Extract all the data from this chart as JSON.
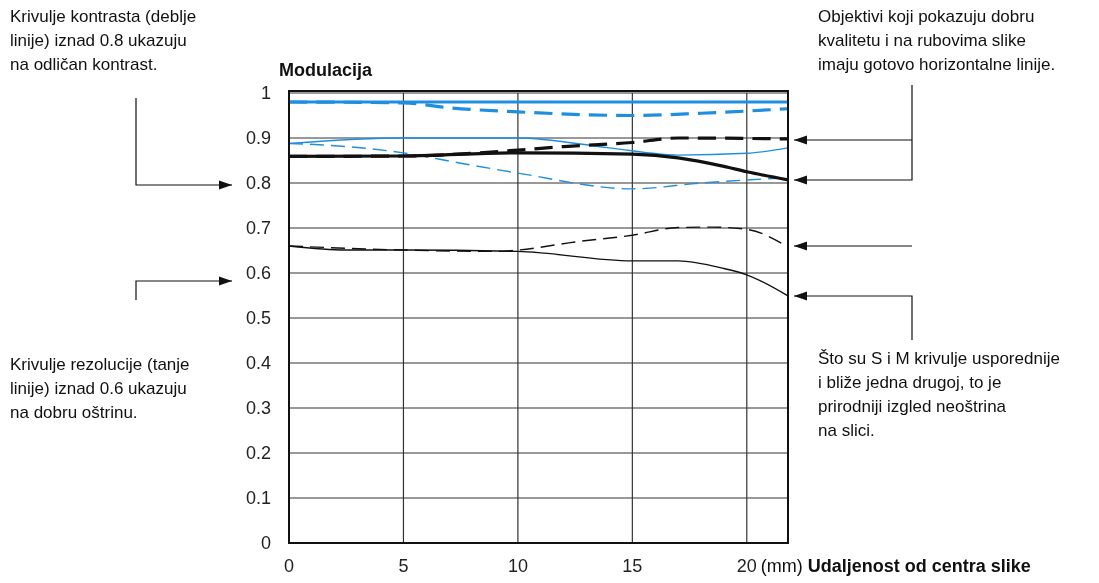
{
  "chart_data": {
    "type": "line",
    "ylabel": "Modulacija",
    "xlabel": "(mm) Udaljenost od centra slike",
    "xlim": [
      0,
      21.8
    ],
    "ylim": [
      0,
      1
    ],
    "xticks": [
      0,
      5,
      10,
      15,
      20
    ],
    "yticks": [
      0,
      0.1,
      0.2,
      0.3,
      0.4,
      0.5,
      0.6,
      0.7,
      0.8,
      0.9,
      1
    ],
    "grid": true,
    "annotations": [
      "Krivulje kontrasta (deblje\nlinije) iznad 0.8 ukazuju\nna odličan kontrast.",
      "Krivulje rezolucije (tanje\nlinije) iznad 0.6 ukazuju\nna dobru oštrinu.",
      "Objektivi koji pokazuju dobru\nkvalitetu i na rubovima slike\nimaju gotovo horizontalne linije.",
      "Što su S i M krivulje usporednije\ni bliže jedna drugoj, to je\nprirodniji izgled neoštrina\nna slici."
    ],
    "series": [
      {
        "color": "#1e8fe0",
        "line_style": "solid",
        "x": [
          0,
          5,
          10,
          15,
          20,
          21.8
        ],
        "values": [
          0.98,
          0.98,
          0.98,
          0.98,
          0.98,
          0.98
        ]
      },
      {
        "color": "#1e8fe0",
        "line_style": "dashed",
        "x": [
          0,
          5,
          7,
          10,
          15,
          18,
          21.8
        ],
        "values": [
          0.98,
          0.978,
          0.967,
          0.958,
          0.95,
          0.955,
          0.965
        ]
      },
      {
        "color": "#1e8fe0",
        "line_style": "solid",
        "x": [
          0,
          5,
          10,
          14,
          17,
          20,
          21.8
        ],
        "values": [
          0.888,
          0.9,
          0.9,
          0.878,
          0.862,
          0.866,
          0.878
        ]
      },
      {
        "color": "#1e8fe0",
        "line_style": "dashed",
        "x": [
          0,
          2.5,
          5,
          7.5,
          10,
          15,
          18,
          21.8
        ],
        "values": [
          0.888,
          0.881,
          0.867,
          0.844,
          0.822,
          0.787,
          0.8,
          0.812
        ]
      },
      {
        "color": "#111111",
        "line_style": "solid",
        "x": [
          0,
          5,
          10,
          15,
          17,
          19,
          20,
          21.8
        ],
        "values": [
          0.859,
          0.86,
          0.867,
          0.864,
          0.856,
          0.837,
          0.825,
          0.807
        ]
      },
      {
        "color": "#111111",
        "line_style": "dashed",
        "x": [
          0,
          5,
          10,
          12,
          15,
          17,
          21.8
        ],
        "values": [
          0.859,
          0.86,
          0.873,
          0.881,
          0.89,
          0.9,
          0.898
        ]
      },
      {
        "color": "#111111",
        "line_style": "solid",
        "x": [
          0,
          2.5,
          5,
          10,
          15,
          17,
          19,
          20,
          21.8
        ],
        "values": [
          0.66,
          0.651,
          0.651,
          0.648,
          0.627,
          0.627,
          0.61,
          0.596,
          0.549
        ]
      },
      {
        "color": "#111111",
        "line_style": "dashed",
        "x": [
          0,
          5,
          9,
          10,
          12.5,
          15,
          17,
          18.5,
          20,
          21.8
        ],
        "values": [
          0.66,
          0.651,
          0.648,
          0.651,
          0.669,
          0.684,
          0.701,
          0.702,
          0.697,
          0.658
        ]
      }
    ]
  }
}
